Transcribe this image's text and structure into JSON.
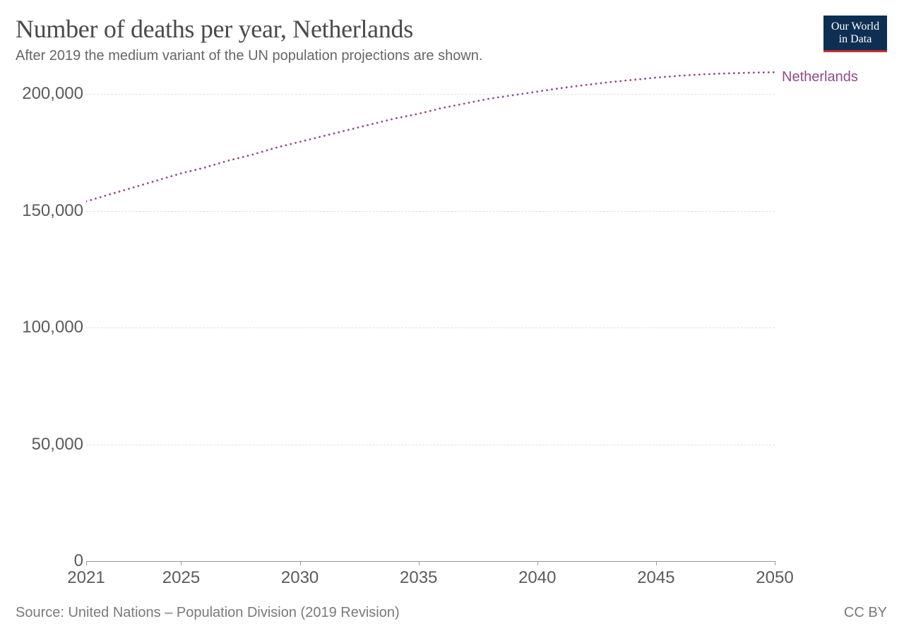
{
  "header": {
    "title": "Number of deaths per year, Netherlands",
    "subtitle": "After 2019 the medium variant of the UN population projections are shown."
  },
  "logo": {
    "line1": "Our World",
    "line2": "in Data",
    "bg_color": "#0d2f52",
    "underline_color": "#c0302f"
  },
  "chart": {
    "type": "line",
    "background_color": "#ffffff",
    "grid_color": "#e2e2e2",
    "axis_color": "#999999",
    "label_color": "#5b5b5b",
    "label_fontsize": 24,
    "title_fontsize": 36,
    "subtitle_fontsize": 20,
    "ylim": [
      0,
      210000
    ],
    "yticks": [
      0,
      50000,
      100000,
      150000,
      200000
    ],
    "ytick_labels": [
      "0",
      "50,000",
      "100,000",
      "150,000",
      "200,000"
    ],
    "xlim": [
      2021,
      2050
    ],
    "xticks": [
      2021,
      2025,
      2030,
      2035,
      2040,
      2045,
      2050
    ],
    "xtick_labels": [
      "2021",
      "2025",
      "2030",
      "2035",
      "2040",
      "2045",
      "2050"
    ],
    "series": [
      {
        "name": "Netherlands",
        "label": "Netherlands",
        "color": "#924a8b",
        "line_style": "dotted",
        "line_width": 2.5,
        "dot_radius": 1.4,
        "dot_spacing": 7,
        "x": [
          2021,
          2022,
          2023,
          2024,
          2025,
          2026,
          2027,
          2028,
          2029,
          2030,
          2031,
          2032,
          2033,
          2034,
          2035,
          2036,
          2037,
          2038,
          2039,
          2040,
          2041,
          2042,
          2043,
          2044,
          2045,
          2046,
          2047,
          2048,
          2049,
          2050
        ],
        "y": [
          154000,
          157000,
          160000,
          163000,
          166000,
          168500,
          171500,
          174000,
          177000,
          179500,
          182000,
          184500,
          187000,
          189500,
          191500,
          194000,
          196000,
          198000,
          199500,
          201000,
          202500,
          203800,
          205000,
          206000,
          207000,
          207800,
          208400,
          208800,
          209100,
          209300
        ]
      }
    ]
  },
  "footer": {
    "source": "Source: United Nations – Population Division (2019 Revision)",
    "license": "CC BY"
  }
}
